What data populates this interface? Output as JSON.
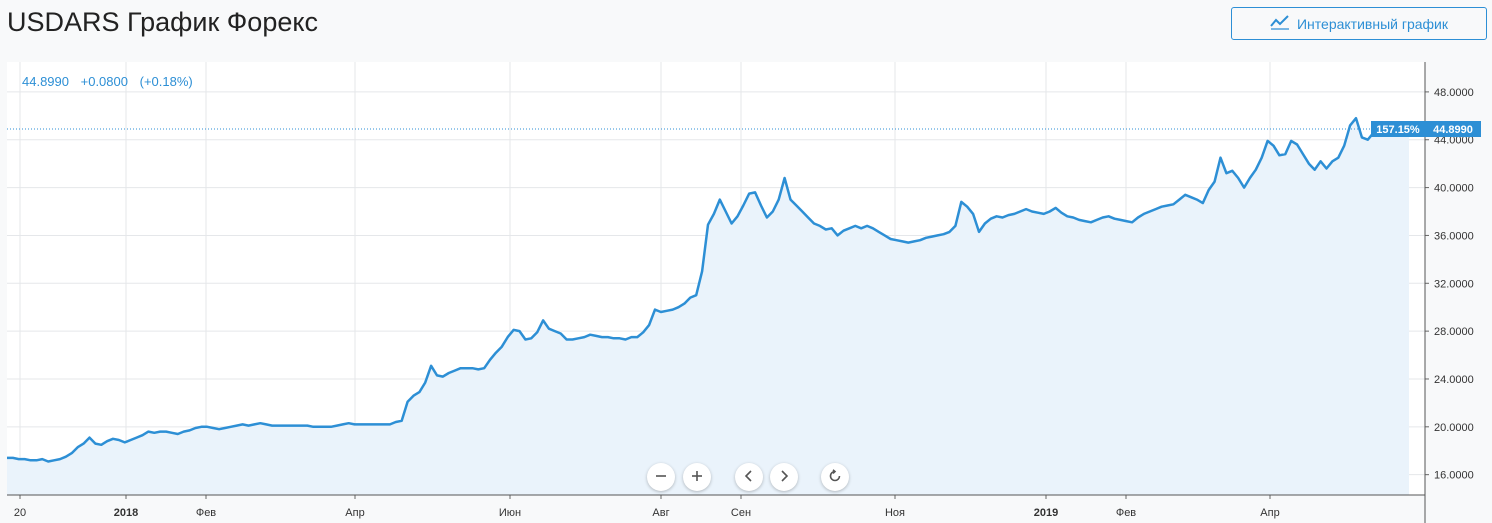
{
  "header": {
    "title": "USDARS График Форекс",
    "interactive_button_label": "Интерактивный график",
    "interactive_button_icon": "chart-line-icon"
  },
  "quote": {
    "price": "44.8990",
    "change": "+0.0800",
    "change_pct": "(+0.18%)"
  },
  "badges": {
    "percent": "157.15%",
    "price": "44.8990"
  },
  "controls": [
    "zoom-out-icon",
    "zoom-in-icon",
    "scroll-left-icon",
    "scroll-right-icon",
    "reset-icon"
  ],
  "colors": {
    "line": "#2d8fd5",
    "area": "#eaf3fb",
    "grid": "#e5e7ea",
    "badge": "#2d8fd5"
  },
  "chart_data": {
    "type": "area",
    "title": "",
    "xlabel": "",
    "ylabel": "",
    "ylim": [
      14.3,
      50.5
    ],
    "y_ticks": [
      "48.0000",
      "44.0000",
      "40.0000",
      "36.0000",
      "32.0000",
      "28.0000",
      "24.0000",
      "20.0000",
      "16.0000"
    ],
    "x_tick_labels": [
      "20",
      "2018",
      "Фев",
      "Апр",
      "Июн",
      "Авг",
      "Сен",
      "Ноя",
      "2019",
      "Фев",
      "Апр"
    ],
    "last_value": 44.899,
    "grid": true,
    "series": [
      {
        "values": [
          17.4,
          17.4,
          17.3,
          17.3,
          17.2,
          17.2,
          17.3,
          17.1,
          17.2,
          17.3,
          17.5,
          17.8,
          18.3,
          18.6,
          19.1,
          18.6,
          18.5,
          18.8,
          19.0,
          18.9,
          18.7,
          18.9,
          19.1,
          19.3,
          19.6,
          19.5,
          19.6,
          19.6,
          19.5,
          19.4,
          19.6,
          19.7,
          19.9,
          20.0,
          20.0,
          19.9,
          19.8,
          19.9,
          20.0,
          20.1,
          20.2,
          20.1,
          20.2,
          20.3,
          20.2,
          20.1,
          20.1,
          20.1,
          20.1,
          20.1,
          20.1,
          20.1,
          20.0,
          20.0,
          20.0,
          20.0,
          20.1,
          20.2,
          20.3,
          20.2,
          20.2,
          20.2,
          20.2,
          20.2,
          20.2,
          20.2,
          20.4,
          20.5,
          22.1,
          22.6,
          22.9,
          23.7,
          25.1,
          24.3,
          24.2,
          24.5,
          24.7,
          24.9,
          24.9,
          24.9,
          24.8,
          24.9,
          25.6,
          26.2,
          26.7,
          27.5,
          28.1,
          28.0,
          27.3,
          27.4,
          27.9,
          28.9,
          28.2,
          28.0,
          27.8,
          27.3,
          27.3,
          27.4,
          27.5,
          27.7,
          27.6,
          27.5,
          27.5,
          27.4,
          27.4,
          27.3,
          27.5,
          27.5,
          27.9,
          28.5,
          29.8,
          29.6,
          29.7,
          29.8,
          30.0,
          30.3,
          30.8,
          31.0,
          33.0,
          36.9,
          37.8,
          39.0,
          38.0,
          37.0,
          37.6,
          38.5,
          39.5,
          39.6,
          38.5,
          37.5,
          38.0,
          39.0,
          40.8,
          39.0,
          38.5,
          38.0,
          37.5,
          37.0,
          36.8,
          36.5,
          36.6,
          36.0,
          36.4,
          36.6,
          36.8,
          36.6,
          36.8,
          36.6,
          36.3,
          36.0,
          35.7,
          35.6,
          35.5,
          35.4,
          35.5,
          35.6,
          35.8,
          35.9,
          36.0,
          36.1,
          36.3,
          36.8,
          38.8,
          38.4,
          37.8,
          36.3,
          37.0,
          37.4,
          37.6,
          37.5,
          37.7,
          37.8,
          38.0,
          38.2,
          38.0,
          37.9,
          37.8,
          38.0,
          38.3,
          37.9,
          37.6,
          37.5,
          37.3,
          37.2,
          37.1,
          37.3,
          37.5,
          37.6,
          37.4,
          37.3,
          37.2,
          37.1,
          37.5,
          37.8,
          38.0,
          38.2,
          38.4,
          38.5,
          38.6,
          39.0,
          39.4,
          39.2,
          39.0,
          38.7,
          39.8,
          40.5,
          42.5,
          41.2,
          41.4,
          40.8,
          40.0,
          40.8,
          41.5,
          42.5,
          43.9,
          43.5,
          42.7,
          42.8,
          43.9,
          43.6,
          42.8,
          42.0,
          41.5,
          42.2,
          41.6,
          42.2,
          42.5,
          43.5,
          45.2,
          45.8,
          44.2,
          44.0,
          44.6,
          45.0,
          44.5,
          44.9,
          45.2,
          45.1,
          44.9
        ]
      }
    ]
  }
}
